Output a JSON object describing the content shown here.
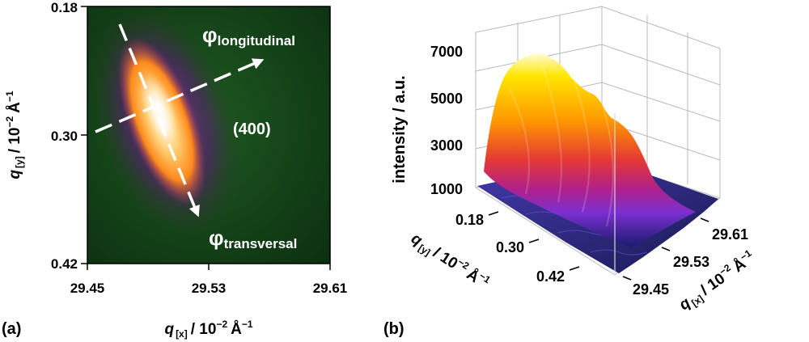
{
  "panels": {
    "a_label": "(a)",
    "b_label": "(b)"
  },
  "chart_data": [
    {
      "type": "heatmap",
      "panel": "(a)",
      "xlabel": {
        "var": "q",
        "sub": "[x]",
        "unit": "/ 10",
        "exp": "−2",
        "tail": "Å",
        "tail_exp": "−1"
      },
      "ylabel": {
        "var": "q",
        "sub": "[y]",
        "unit": "/ 10",
        "exp": "−2",
        "tail": "Å",
        "tail_exp": "−1"
      },
      "xlim": [
        29.45,
        29.61
      ],
      "ylim": [
        0.18,
        0.42
      ],
      "x_ticks": [
        "29.45",
        "29.53",
        "29.61"
      ],
      "y_ticks": [
        "0.18",
        "0.30",
        "0.42"
      ],
      "peak": {
        "x": 29.49,
        "y": 0.27
      },
      "annotations": {
        "reflection": "(400)",
        "phi": "φ",
        "longitudinal": "longitudinal",
        "transversal": "transversal"
      },
      "colors": {
        "background": "#0d3a12",
        "mid": "#7b1fa2",
        "hot": "#ff9a1a",
        "peak": "#ffffff"
      }
    },
    {
      "type": "surface",
      "panel": "(b)",
      "zlabel": "intensity / a.u.",
      "z_ticks": [
        "7000",
        "5000",
        "3000",
        "1000"
      ],
      "zlim": [
        1000,
        7000
      ],
      "y_ticks": [
        "0.18",
        "0.30",
        "0.42"
      ],
      "x_ticks": [
        "29.61",
        "29.53",
        "29.45"
      ],
      "ylabel": {
        "var": "q",
        "sub": "[y]",
        "unit": "/ 10",
        "exp": "−2",
        "tail": "Å",
        "tail_exp": "−1"
      },
      "xlabel": {
        "var": "q",
        "sub": "[x]",
        "unit": "/ 10",
        "exp": "−2",
        "tail": "Å",
        "tail_exp": "−1"
      },
      "peak_intensity": 7000,
      "colors": {
        "low": "#1a1a6e",
        "violet": "#7b2fd0",
        "magenta": "#c2186b",
        "red": "#e53935",
        "orange": "#ff8f00",
        "yellow": "#ffe600",
        "top": "#fffde0"
      }
    }
  ]
}
